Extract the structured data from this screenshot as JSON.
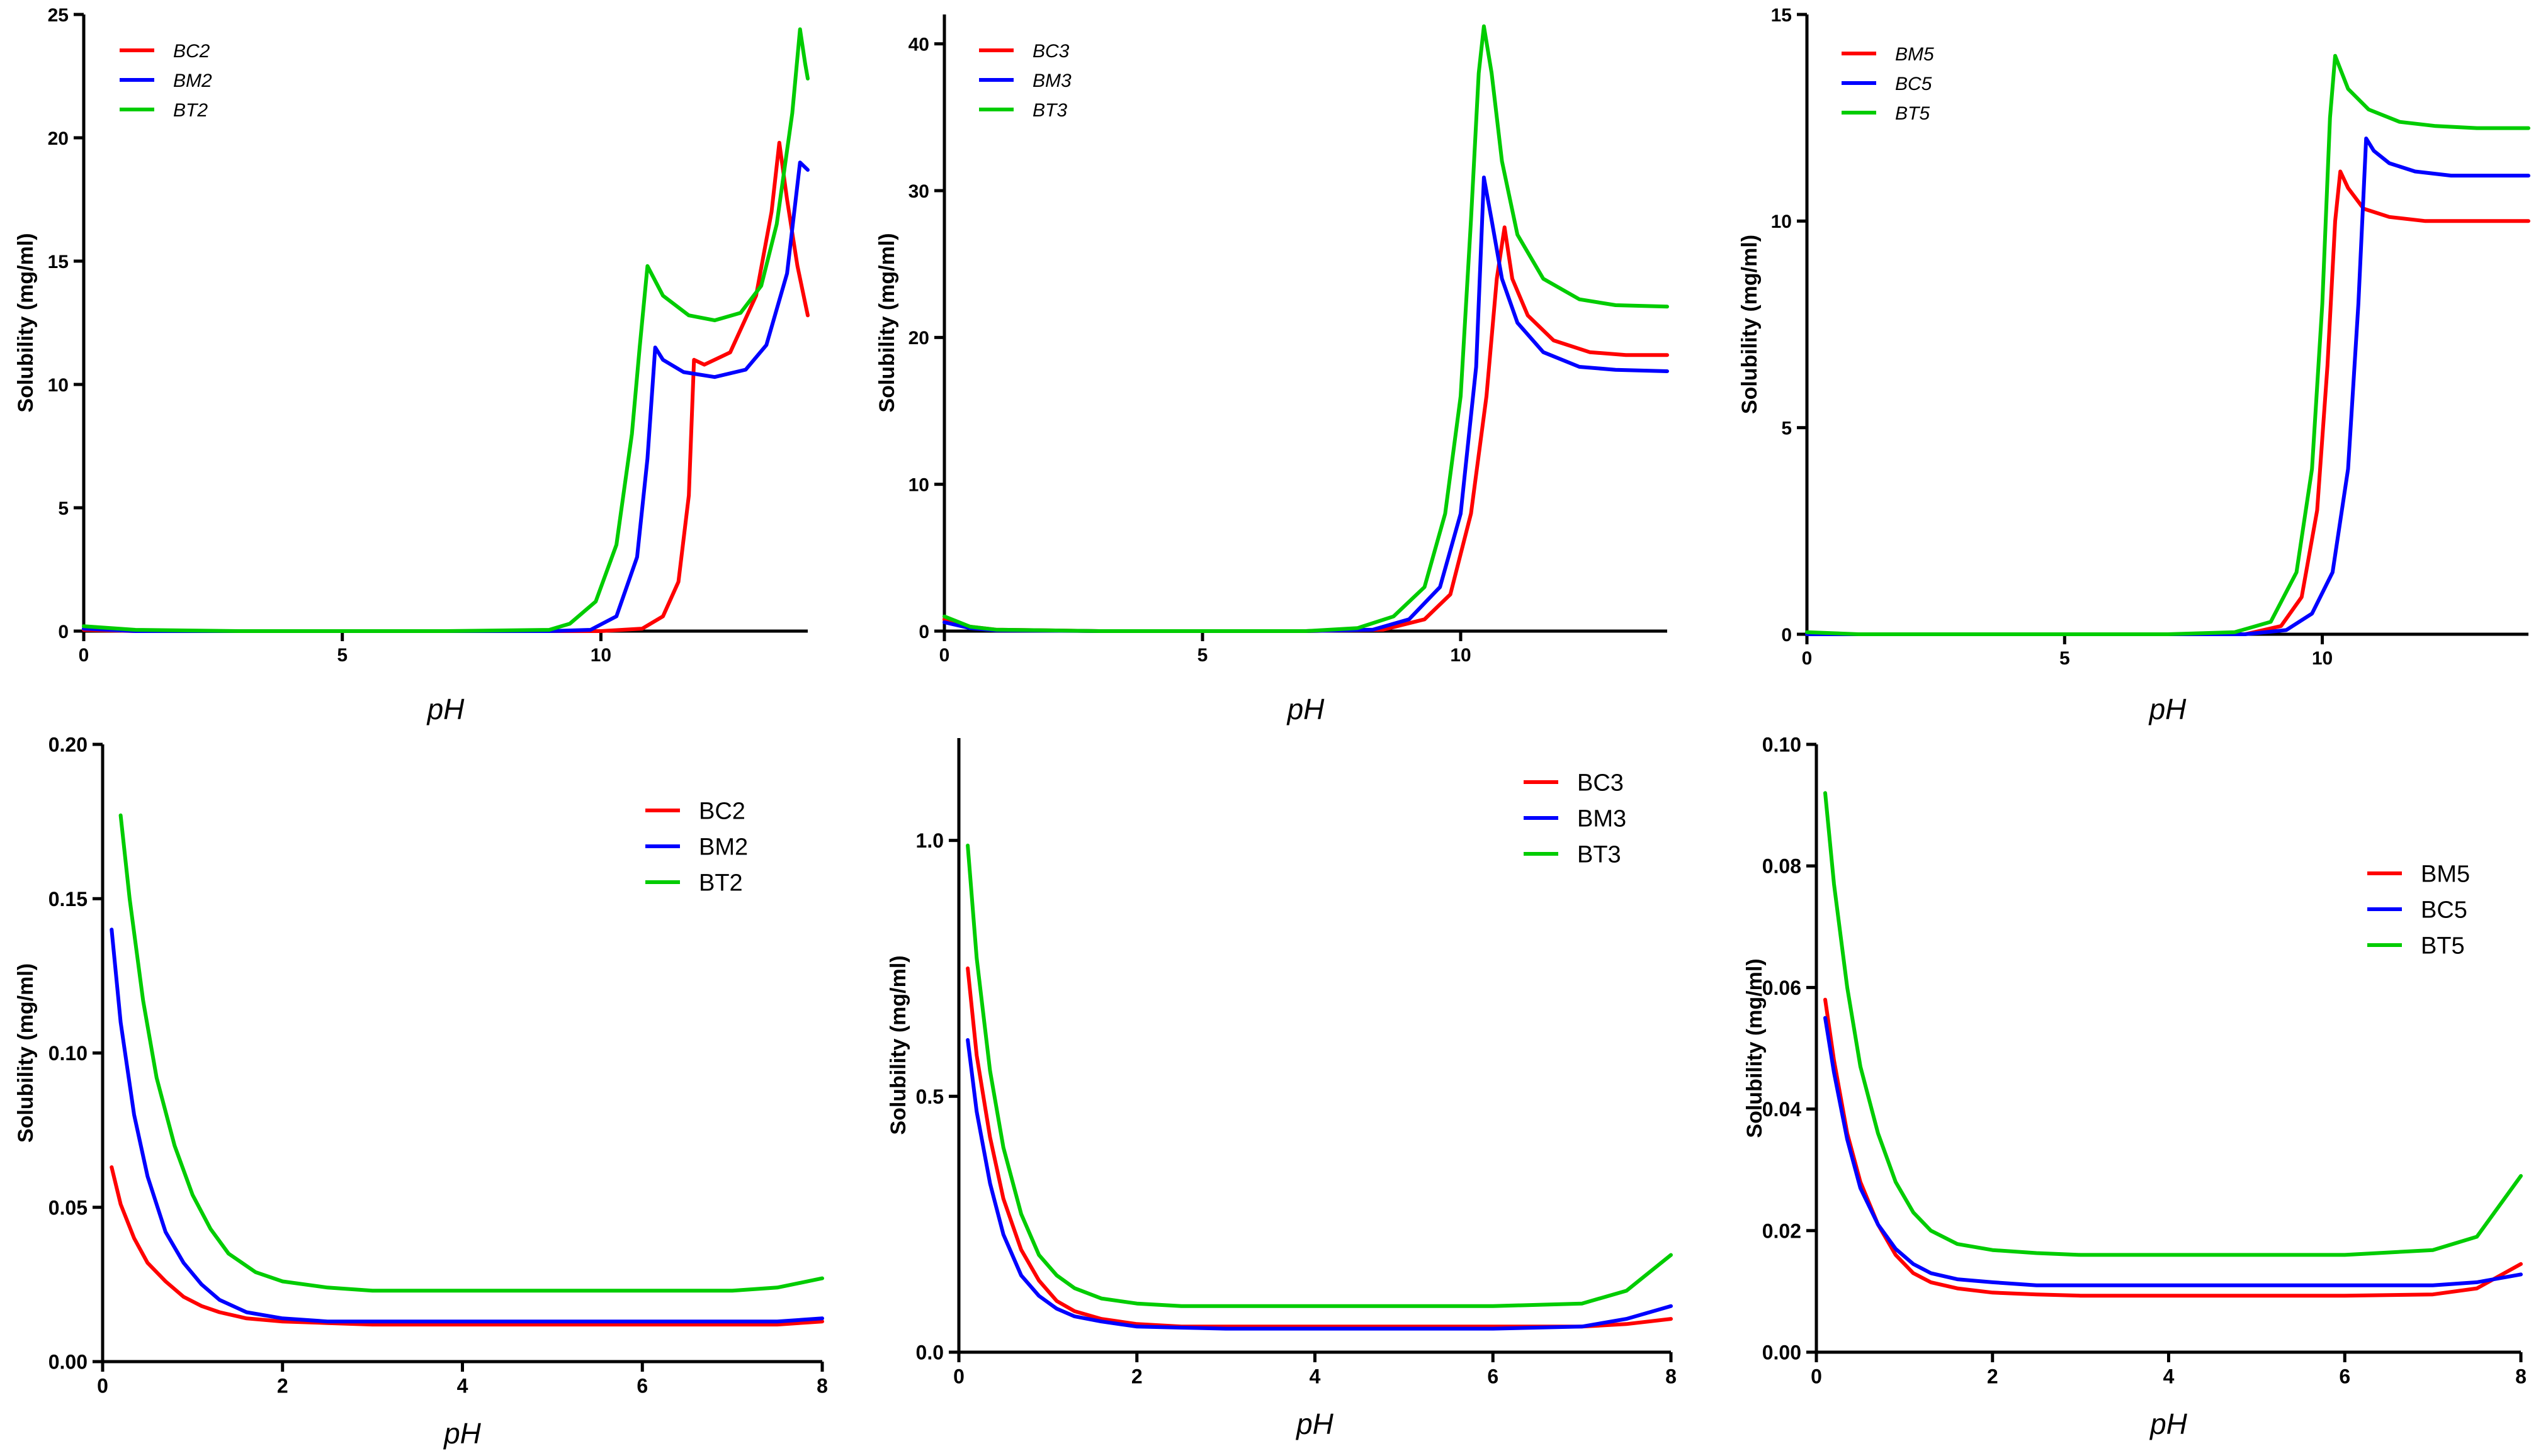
{
  "colors": {
    "red": "#ff0000",
    "blue": "#0000ff",
    "green": "#00cc00"
  },
  "chart_data": [
    {
      "type": "line",
      "xlabel": "pH",
      "ylabel": "Solubility (mg/ml)",
      "xlim": [
        0,
        14
      ],
      "ylim": [
        0,
        25
      ],
      "xticks": [
        0,
        5,
        10
      ],
      "yticks": [
        0,
        5,
        10,
        15,
        20,
        25
      ],
      "legend_position": "top-left",
      "legend_italic": true,
      "series": [
        {
          "name": "BC2",
          "color": "#ff0000",
          "x": [
            0,
            1,
            3,
            5,
            7,
            9,
            10,
            10.8,
            11.2,
            11.5,
            11.7,
            11.8,
            12,
            12.5,
            13,
            13.3,
            13.45,
            13.6,
            13.8,
            14
          ],
          "y": [
            0.05,
            0,
            0,
            0,
            0,
            0,
            0,
            0.1,
            0.6,
            2,
            5.5,
            11,
            10.8,
            11.3,
            13.6,
            17,
            19.8,
            17.5,
            14.8,
            12.8
          ]
        },
        {
          "name": "BM2",
          "color": "#0000ff",
          "x": [
            0,
            1,
            3,
            5,
            7,
            9,
            9.8,
            10.3,
            10.7,
            10.9,
            11.05,
            11.2,
            11.6,
            12.2,
            12.8,
            13.2,
            13.6,
            13.85,
            14
          ],
          "y": [
            0.1,
            0,
            0,
            0,
            0,
            0,
            0.05,
            0.6,
            3,
            7,
            11.5,
            11,
            10.5,
            10.3,
            10.6,
            11.6,
            14.5,
            19,
            18.7
          ]
        },
        {
          "name": "BT2",
          "color": "#00cc00",
          "x": [
            0,
            1,
            3,
            5,
            7,
            9,
            9.4,
            9.9,
            10.3,
            10.6,
            10.75,
            10.9,
            11.2,
            11.7,
            12.2,
            12.7,
            13.1,
            13.4,
            13.7,
            13.85,
            13.95,
            14
          ],
          "y": [
            0.2,
            0.05,
            0,
            0,
            0,
            0.05,
            0.3,
            1.2,
            3.5,
            8,
            11.5,
            14.8,
            13.6,
            12.8,
            12.6,
            12.9,
            14,
            16.5,
            21,
            24.4,
            23,
            22.4
          ]
        }
      ]
    },
    {
      "type": "line",
      "xlabel": "pH",
      "ylabel": "Solubility (mg/ml)",
      "xlim": [
        0,
        14
      ],
      "ylim": [
        0,
        42
      ],
      "xticks": [
        0,
        5,
        10
      ],
      "yticks": [
        0,
        10,
        20,
        30,
        40
      ],
      "legend_position": "top-left",
      "legend_italic": true,
      "series": [
        {
          "name": "BC3",
          "color": "#ff0000",
          "x": [
            0,
            0.5,
            1,
            3,
            5,
            7,
            8.5,
            9.3,
            9.8,
            10.2,
            10.5,
            10.7,
            10.85,
            11,
            11.3,
            11.8,
            12.5,
            13.2,
            14
          ],
          "y": [
            0.8,
            0.3,
            0.1,
            0,
            0,
            0,
            0.1,
            0.8,
            2.5,
            8,
            16,
            24,
            27.5,
            24,
            21.5,
            19.8,
            19,
            18.8,
            18.8
          ]
        },
        {
          "name": "BM3",
          "color": "#0000ff",
          "x": [
            0,
            0.5,
            1,
            3,
            5,
            7,
            8.3,
            9,
            9.6,
            10,
            10.3,
            10.45,
            10.6,
            10.8,
            11.1,
            11.6,
            12.3,
            13,
            14
          ],
          "y": [
            0.6,
            0.2,
            0.05,
            0,
            0,
            0,
            0.1,
            0.8,
            3,
            8,
            18,
            30.9,
            28,
            24,
            21,
            19,
            18,
            17.8,
            17.7
          ]
        },
        {
          "name": "BT3",
          "color": "#00cc00",
          "x": [
            0,
            0.5,
            1,
            3,
            5,
            7,
            8,
            8.7,
            9.3,
            9.7,
            10,
            10.2,
            10.35,
            10.45,
            10.6,
            10.8,
            11.1,
            11.6,
            12.3,
            13,
            14
          ],
          "y": [
            1,
            0.3,
            0.1,
            0,
            0,
            0,
            0.2,
            1,
            3,
            8,
            16,
            28,
            38,
            41.2,
            38,
            32,
            27,
            24,
            22.6,
            22.2,
            22.1
          ]
        }
      ]
    },
    {
      "type": "line",
      "xlabel": "pH",
      "ylabel": "Solubility (mg/ml)",
      "xlim": [
        0,
        14
      ],
      "ylim": [
        0,
        15
      ],
      "xticks": [
        0,
        5,
        10
      ],
      "yticks": [
        0,
        5,
        10,
        15
      ],
      "legend_position": "top-left",
      "legend_italic": true,
      "series": [
        {
          "name": "BM5",
          "color": "#ff0000",
          "x": [
            0,
            1,
            3,
            5,
            7,
            8.5,
            9.2,
            9.6,
            9.9,
            10.1,
            10.25,
            10.35,
            10.5,
            10.8,
            11.3,
            12,
            13,
            14
          ],
          "y": [
            0,
            0,
            0,
            0,
            0,
            0,
            0.2,
            0.9,
            3,
            6.5,
            10,
            11.2,
            10.8,
            10.3,
            10.1,
            10,
            10,
            10
          ]
        },
        {
          "name": "BC5",
          "color": "#0000ff",
          "x": [
            0,
            1,
            3,
            5,
            7,
            8.5,
            9.3,
            9.8,
            10.2,
            10.5,
            10.7,
            10.85,
            11,
            11.3,
            11.8,
            12.5,
            13.2,
            14
          ],
          "y": [
            0,
            0,
            0,
            0,
            0,
            0,
            0.1,
            0.5,
            1.5,
            4,
            8,
            12,
            11.7,
            11.4,
            11.2,
            11.1,
            11.1,
            11.1
          ]
        },
        {
          "name": "BT5",
          "color": "#00cc00",
          "x": [
            0,
            1,
            3,
            5,
            7,
            8.3,
            9,
            9.5,
            9.8,
            10,
            10.15,
            10.25,
            10.5,
            10.9,
            11.5,
            12.2,
            13,
            14
          ],
          "y": [
            0.05,
            0,
            0,
            0,
            0,
            0.05,
            0.3,
            1.5,
            4,
            8,
            12.5,
            14,
            13.2,
            12.7,
            12.4,
            12.3,
            12.25,
            12.25
          ]
        }
      ]
    },
    {
      "type": "line",
      "xlabel": "pH",
      "ylabel": "Solubility (mg/ml)",
      "xlim": [
        0,
        8
      ],
      "ylim": [
        0,
        0.2
      ],
      "xticks": [
        0,
        2,
        4,
        6,
        8
      ],
      "yticks": [
        0.0,
        0.05,
        0.1,
        0.15,
        0.2
      ],
      "ytick_format": 2,
      "legend_position": "top-right",
      "legend_italic": false,
      "series": [
        {
          "name": "BC2",
          "color": "#ff0000",
          "x": [
            0.1,
            0.2,
            0.35,
            0.5,
            0.7,
            0.9,
            1.1,
            1.3,
            1.6,
            2,
            2.5,
            3,
            4,
            5,
            6,
            7,
            7.5,
            8
          ],
          "y": [
            0.063,
            0.051,
            0.04,
            0.032,
            0.026,
            0.021,
            0.018,
            0.016,
            0.014,
            0.013,
            0.0125,
            0.012,
            0.012,
            0.012,
            0.012,
            0.012,
            0.012,
            0.013
          ]
        },
        {
          "name": "BM2",
          "color": "#0000ff",
          "x": [
            0.1,
            0.2,
            0.35,
            0.5,
            0.7,
            0.9,
            1.1,
            1.3,
            1.6,
            2,
            2.5,
            3,
            4,
            5,
            6,
            7,
            7.5,
            8
          ],
          "y": [
            0.14,
            0.11,
            0.08,
            0.06,
            0.042,
            0.032,
            0.025,
            0.02,
            0.016,
            0.014,
            0.013,
            0.013,
            0.013,
            0.013,
            0.013,
            0.013,
            0.013,
            0.014
          ]
        },
        {
          "name": "BT2",
          "color": "#00cc00",
          "x": [
            0.2,
            0.3,
            0.45,
            0.6,
            0.8,
            1,
            1.2,
            1.4,
            1.7,
            2,
            2.5,
            3,
            4,
            5,
            6,
            7,
            7.5,
            8
          ],
          "y": [
            0.177,
            0.15,
            0.117,
            0.092,
            0.07,
            0.054,
            0.043,
            0.035,
            0.029,
            0.026,
            0.024,
            0.023,
            0.023,
            0.023,
            0.023,
            0.023,
            0.024,
            0.027
          ]
        }
      ]
    },
    {
      "type": "line",
      "xlabel": "pH",
      "ylabel": "Solubility (mg/ml)",
      "xlim": [
        0,
        8
      ],
      "ylim": [
        0,
        1.2
      ],
      "xticks": [
        0,
        2,
        4,
        6,
        8
      ],
      "yticks": [
        0.0,
        0.5,
        1.0
      ],
      "ytick_format": 1,
      "legend_position": "top-right",
      "legend_italic": false,
      "series": [
        {
          "name": "BC3",
          "color": "#ff0000",
          "x": [
            0.1,
            0.2,
            0.35,
            0.5,
            0.7,
            0.9,
            1.1,
            1.3,
            1.6,
            2,
            2.5,
            3,
            4,
            5,
            6,
            7,
            7.5,
            8
          ],
          "y": [
            0.75,
            0.58,
            0.42,
            0.3,
            0.2,
            0.14,
            0.1,
            0.08,
            0.065,
            0.055,
            0.05,
            0.05,
            0.05,
            0.05,
            0.05,
            0.05,
            0.055,
            0.065
          ]
        },
        {
          "name": "BM3",
          "color": "#0000ff",
          "x": [
            0.1,
            0.2,
            0.35,
            0.5,
            0.7,
            0.9,
            1.1,
            1.3,
            1.6,
            2,
            2.5,
            3,
            4,
            5,
            6,
            7,
            7.5,
            8
          ],
          "y": [
            0.61,
            0.47,
            0.33,
            0.23,
            0.15,
            0.11,
            0.085,
            0.07,
            0.06,
            0.05,
            0.048,
            0.046,
            0.046,
            0.046,
            0.046,
            0.05,
            0.065,
            0.09
          ]
        },
        {
          "name": "BT3",
          "color": "#00cc00",
          "x": [
            0.1,
            0.2,
            0.35,
            0.5,
            0.7,
            0.9,
            1.1,
            1.3,
            1.6,
            2,
            2.5,
            3,
            4,
            5,
            6,
            7,
            7.5,
            8
          ],
          "y": [
            0.99,
            0.77,
            0.55,
            0.4,
            0.27,
            0.19,
            0.15,
            0.125,
            0.105,
            0.095,
            0.09,
            0.09,
            0.09,
            0.09,
            0.09,
            0.095,
            0.12,
            0.19
          ]
        }
      ]
    },
    {
      "type": "line",
      "xlabel": "pH",
      "ylabel": "Solubility (mg/ml)",
      "xlim": [
        0,
        8
      ],
      "ylim": [
        0,
        0.1
      ],
      "xticks": [
        0,
        2,
        4,
        6,
        8
      ],
      "yticks": [
        0.0,
        0.02,
        0.04,
        0.06,
        0.08,
        0.1
      ],
      "ytick_format": 2,
      "legend_position": "top-right",
      "legend_italic": false,
      "series": [
        {
          "name": "BM5",
          "color": "#ff0000",
          "x": [
            0.1,
            0.2,
            0.35,
            0.5,
            0.7,
            0.9,
            1.1,
            1.3,
            1.6,
            2,
            2.5,
            3,
            4,
            5,
            6,
            7,
            7.5,
            8
          ],
          "y": [
            0.058,
            0.048,
            0.036,
            0.028,
            0.021,
            0.016,
            0.013,
            0.0115,
            0.0105,
            0.0098,
            0.0095,
            0.0093,
            0.0093,
            0.0093,
            0.0093,
            0.0095,
            0.0105,
            0.0145
          ]
        },
        {
          "name": "BC5",
          "color": "#0000ff",
          "x": [
            0.1,
            0.2,
            0.35,
            0.5,
            0.7,
            0.9,
            1.1,
            1.3,
            1.6,
            2,
            2.5,
            3,
            4,
            5,
            6,
            7,
            7.5,
            8
          ],
          "y": [
            0.055,
            0.046,
            0.035,
            0.027,
            0.021,
            0.017,
            0.0145,
            0.013,
            0.012,
            0.0115,
            0.011,
            0.011,
            0.011,
            0.011,
            0.011,
            0.011,
            0.0115,
            0.0128
          ]
        },
        {
          "name": "BT5",
          "color": "#00cc00",
          "x": [
            0.1,
            0.2,
            0.35,
            0.5,
            0.7,
            0.9,
            1.1,
            1.3,
            1.6,
            2,
            2.5,
            3,
            4,
            5,
            6,
            7,
            7.5,
            8
          ],
          "y": [
            0.092,
            0.077,
            0.06,
            0.047,
            0.036,
            0.028,
            0.023,
            0.02,
            0.0178,
            0.0168,
            0.0163,
            0.016,
            0.016,
            0.016,
            0.016,
            0.0168,
            0.019,
            0.029
          ]
        }
      ]
    }
  ]
}
